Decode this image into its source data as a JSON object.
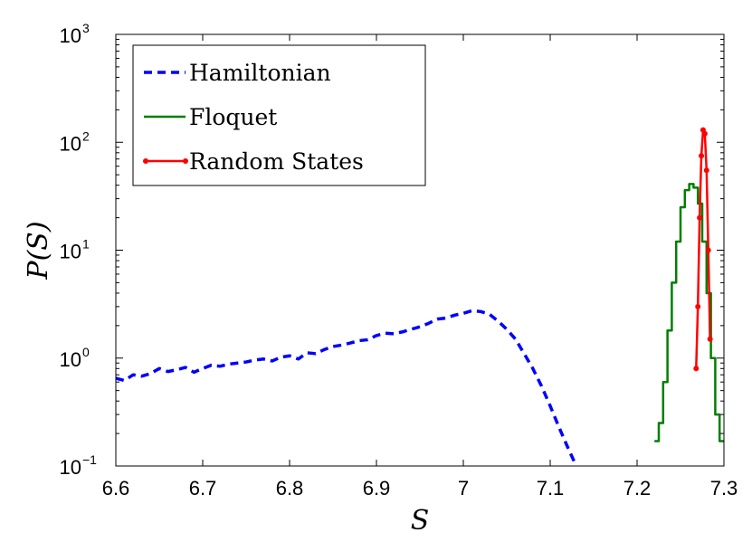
{
  "chart_data": {
    "type": "line",
    "xlabel": "S",
    "ylabel": "P(S)",
    "xlim": [
      6.6,
      7.3
    ],
    "ylim": [
      0.1,
      1000
    ],
    "y_scale": "log",
    "x_ticks": [
      "6.6",
      "6.7",
      "6.8",
      "6.9",
      "7",
      "7.1",
      "7.2",
      "7.3"
    ],
    "y_ticks": [
      {
        "base": "10",
        "exp": "−1",
        "value": 0.1
      },
      {
        "base": "10",
        "exp": "0",
        "value": 1
      },
      {
        "base": "10",
        "exp": "1",
        "value": 10
      },
      {
        "base": "10",
        "exp": "2",
        "value": 100
      },
      {
        "base": "10",
        "exp": "3",
        "value": 1000
      }
    ],
    "legend_position": "top-left",
    "series": [
      {
        "name": "Hamiltonian",
        "style": "dashed",
        "color": "#0000ff",
        "x": [
          6.6,
          6.61,
          6.62,
          6.63,
          6.64,
          6.65,
          6.66,
          6.67,
          6.68,
          6.69,
          6.7,
          6.71,
          6.72,
          6.73,
          6.74,
          6.75,
          6.76,
          6.77,
          6.78,
          6.79,
          6.8,
          6.81,
          6.82,
          6.83,
          6.84,
          6.85,
          6.86,
          6.87,
          6.88,
          6.89,
          6.9,
          6.91,
          6.92,
          6.93,
          6.94,
          6.95,
          6.96,
          6.97,
          6.98,
          6.99,
          7.0,
          7.01,
          7.02,
          7.03,
          7.04,
          7.05,
          7.06,
          7.07,
          7.08,
          7.09,
          7.1,
          7.11,
          7.12,
          7.13
        ],
        "y": [
          0.65,
          0.62,
          0.7,
          0.68,
          0.72,
          0.8,
          0.75,
          0.78,
          0.82,
          0.74,
          0.8,
          0.86,
          0.84,
          0.88,
          0.9,
          0.92,
          0.96,
          0.98,
          0.94,
          1.02,
          1.05,
          0.98,
          1.12,
          1.1,
          1.2,
          1.28,
          1.32,
          1.38,
          1.45,
          1.48,
          1.62,
          1.7,
          1.68,
          1.75,
          1.85,
          1.95,
          2.1,
          2.3,
          2.35,
          2.5,
          2.6,
          2.75,
          2.7,
          2.55,
          2.2,
          1.85,
          1.5,
          1.1,
          0.8,
          0.55,
          0.36,
          0.23,
          0.15,
          0.1
        ]
      },
      {
        "name": "Floquet",
        "style": "solid",
        "color": "#007f00",
        "x": [
          7.22,
          7.225,
          7.23,
          7.235,
          7.24,
          7.245,
          7.25,
          7.255,
          7.26,
          7.265,
          7.27,
          7.275,
          7.28,
          7.285,
          7.29,
          7.295,
          7.3
        ],
        "y": [
          0.17,
          0.25,
          0.6,
          1.8,
          5.0,
          12.0,
          25.0,
          36.0,
          41.0,
          38.0,
          27.0,
          12.0,
          4.0,
          1.0,
          0.3,
          0.17,
          0.17
        ]
      },
      {
        "name": "Random States",
        "style": "solid-markers",
        "color": "#ff0000",
        "x": [
          7.268,
          7.27,
          7.272,
          7.274,
          7.276,
          7.278,
          7.28,
          7.282,
          7.284
        ],
        "y": [
          0.8,
          3.0,
          20.0,
          75.0,
          130.0,
          120.0,
          55.0,
          10.0,
          1.5
        ]
      }
    ]
  }
}
